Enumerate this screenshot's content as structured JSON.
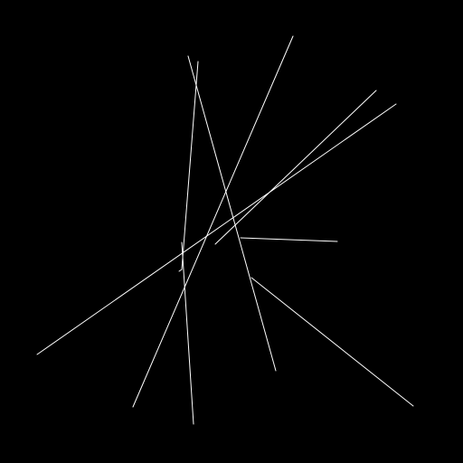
{
  "scene": {
    "background_color": "#000000",
    "stroke_color": "#ffffff",
    "segment_count": 9
  }
}
